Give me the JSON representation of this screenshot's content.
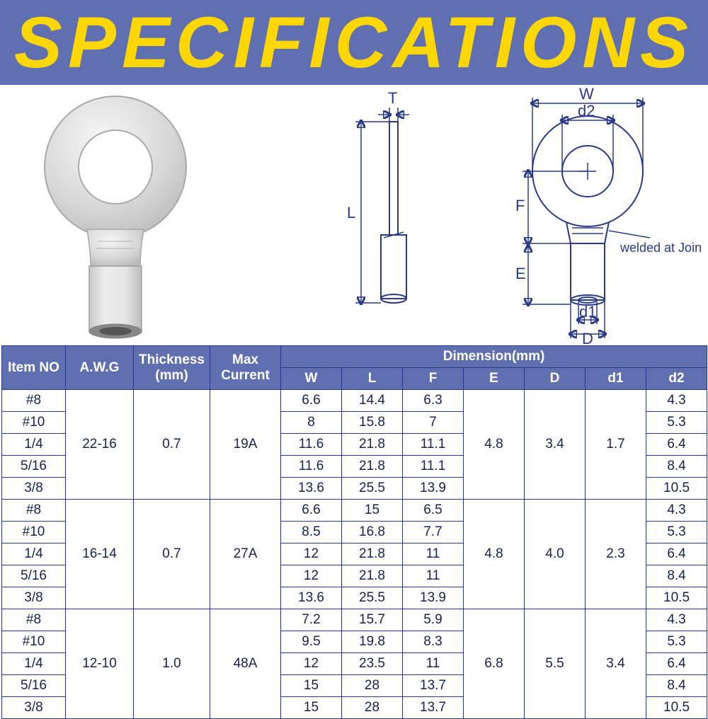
{
  "banner": {
    "title": "SPECIFICATIONS",
    "bg": "#606fb0",
    "fg": "#ffd700"
  },
  "colors": {
    "header_bg": "#606fb0",
    "header_fg": "#ffffff",
    "cell_fg": "#1a2050",
    "border": "#2a3a8a",
    "drawing_stroke": "#2a3a8a"
  },
  "diagram": {
    "note": "welded at Joints",
    "labels": [
      "T",
      "W",
      "d2",
      "L",
      "F",
      "E",
      "d1",
      "D"
    ]
  },
  "table": {
    "columns_top": [
      "Item NO",
      "A.W.G",
      "Thickness (mm)",
      "Max Current"
    ],
    "dim_header": "Dimension(mm)",
    "dim_cols": [
      "W",
      "L",
      "F",
      "E",
      "D",
      "d1",
      "d2"
    ],
    "groups": [
      {
        "awg": "22-16",
        "thickness": "0.7",
        "max_current": "19A",
        "E": "4.8",
        "D": "3.4",
        "d1": "1.7",
        "rows": [
          {
            "item": "#8",
            "W": "6.6",
            "L": "14.4",
            "F": "6.3",
            "d2": "4.3"
          },
          {
            "item": "#10",
            "W": "8",
            "L": "15.8",
            "F": "7",
            "d2": "5.3"
          },
          {
            "item": "1/4",
            "W": "11.6",
            "L": "21.8",
            "F": "11.1",
            "d2": "6.4"
          },
          {
            "item": "5/16",
            "W": "11.6",
            "L": "21.8",
            "F": "11.1",
            "d2": "8.4"
          },
          {
            "item": "3/8",
            "W": "13.6",
            "L": "25.5",
            "F": "13.9",
            "d2": "10.5"
          }
        ]
      },
      {
        "awg": "16-14",
        "thickness": "0.7",
        "max_current": "27A",
        "E": "4.8",
        "D": "4.0",
        "d1": "2.3",
        "rows": [
          {
            "item": "#8",
            "W": "6.6",
            "L": "15",
            "F": "6.5",
            "d2": "4.3"
          },
          {
            "item": "#10",
            "W": "8.5",
            "L": "16.8",
            "F": "7.7",
            "d2": "5.3"
          },
          {
            "item": "1/4",
            "W": "12",
            "L": "21.8",
            "F": "11",
            "d2": "6.4"
          },
          {
            "item": "5/16",
            "W": "12",
            "L": "21.8",
            "F": "11",
            "d2": "8.4"
          },
          {
            "item": "3/8",
            "W": "13.6",
            "L": "25.5",
            "F": "13.9",
            "d2": "10.5"
          }
        ]
      },
      {
        "awg": "12-10",
        "thickness": "1.0",
        "max_current": "48A",
        "E": "6.8",
        "D": "5.5",
        "d1": "3.4",
        "rows": [
          {
            "item": "#8",
            "W": "7.2",
            "L": "15.7",
            "F": "5.9",
            "d2": "4.3"
          },
          {
            "item": "#10",
            "W": "9.5",
            "L": "19.8",
            "F": "8.3",
            "d2": "5.3"
          },
          {
            "item": "1/4",
            "W": "12",
            "L": "23.5",
            "F": "11",
            "d2": "6.4"
          },
          {
            "item": "5/16",
            "W": "15",
            "L": "28",
            "F": "13.7",
            "d2": "8.4"
          },
          {
            "item": "3/8",
            "W": "15",
            "L": "28",
            "F": "13.7",
            "d2": "10.5"
          }
        ]
      }
    ]
  }
}
